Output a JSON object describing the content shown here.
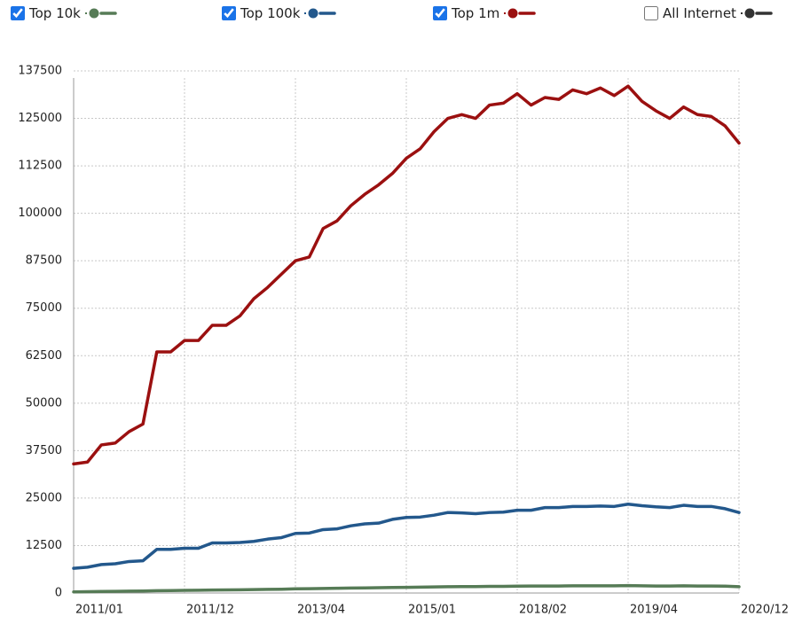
{
  "chart_data": {
    "type": "line",
    "categories": [
      "2011/01",
      null,
      null,
      null,
      null,
      null,
      null,
      null,
      "2011/12",
      null,
      null,
      null,
      null,
      null,
      null,
      null,
      "2013/04",
      null,
      null,
      null,
      null,
      null,
      null,
      null,
      "2015/01",
      null,
      null,
      null,
      null,
      null,
      null,
      null,
      "2018/02",
      null,
      null,
      null,
      null,
      null,
      null,
      null,
      "2019/04",
      null,
      null,
      null,
      null,
      null,
      null,
      null,
      "2020/12"
    ],
    "series": [
      {
        "name": "Top 10k",
        "color": "#567b56",
        "checked": true,
        "values": [
          300,
          350,
          400,
          450,
          500,
          520,
          600,
          650,
          700,
          720,
          800,
          820,
          850,
          900,
          950,
          1000,
          1100,
          1150,
          1200,
          1250,
          1300,
          1350,
          1400,
          1450,
          1500,
          1550,
          1600,
          1650,
          1700,
          1700,
          1750,
          1750,
          1800,
          1850,
          1850,
          1850,
          1900,
          1900,
          1900,
          1900,
          1950,
          1900,
          1850,
          1850,
          1900,
          1850,
          1850,
          1800,
          1650
        ]
      },
      {
        "name": "Top 100k",
        "color": "#23588c",
        "checked": true,
        "values": [
          6500,
          6800,
          7500,
          7700,
          8300,
          8500,
          11500,
          11500,
          11800,
          11800,
          13200,
          13200,
          13300,
          13600,
          14200,
          14600,
          15700,
          15800,
          16700,
          16900,
          17700,
          18200,
          18400,
          19400,
          19900,
          20000,
          20500,
          21200,
          21100,
          20900,
          21200,
          21300,
          21800,
          21800,
          22500,
          22500,
          22800,
          22800,
          22900,
          22800,
          23400,
          23000,
          22700,
          22500,
          23100,
          22800,
          22800,
          22200,
          21200
        ]
      },
      {
        "name": "Top 1m",
        "color": "#9b1010",
        "checked": true,
        "values": [
          34000,
          34500,
          39000,
          39500,
          42500,
          44500,
          63500,
          63500,
          66500,
          66500,
          70500,
          70500,
          73000,
          77500,
          80500,
          84000,
          87500,
          88500,
          96000,
          98000,
          102000,
          105000,
          107500,
          110500,
          114500,
          117000,
          121500,
          125000,
          126000,
          125000,
          128500,
          129000,
          131500,
          128500,
          130500,
          130000,
          132500,
          131500,
          133000,
          131000,
          133500,
          129500,
          127000,
          125000,
          128000,
          126000,
          125500,
          123000,
          118500
        ]
      },
      {
        "name": "All Internet",
        "color": "#333333",
        "checked": false
      }
    ],
    "ylim": [
      0,
      137500
    ],
    "yticks": [
      0,
      12500,
      25000,
      37500,
      50000,
      62500,
      75000,
      87500,
      100000,
      112500,
      125000,
      137500
    ],
    "grid": true
  }
}
